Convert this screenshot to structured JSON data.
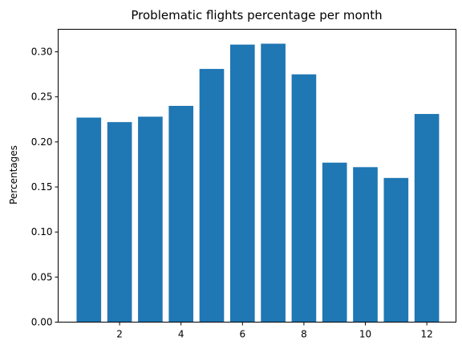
{
  "chart_data": {
    "type": "bar",
    "title": "Problematic flights percentage per month",
    "xlabel": "",
    "ylabel": "Percentages",
    "x": [
      1,
      2,
      3,
      4,
      5,
      6,
      7,
      8,
      9,
      10,
      11,
      12
    ],
    "values": [
      0.227,
      0.222,
      0.228,
      0.24,
      0.281,
      0.308,
      0.309,
      0.275,
      0.177,
      0.172,
      0.16,
      0.231
    ],
    "xticks": [
      2,
      4,
      6,
      8,
      10,
      12
    ],
    "yticks": [
      0.0,
      0.05,
      0.1,
      0.15,
      0.2,
      0.25,
      0.3
    ],
    "xlim": [
      0.0,
      12.95
    ],
    "ylim": [
      0,
      0.325
    ],
    "bar_color": "#1f77b4",
    "grid": false,
    "legend": "none"
  }
}
